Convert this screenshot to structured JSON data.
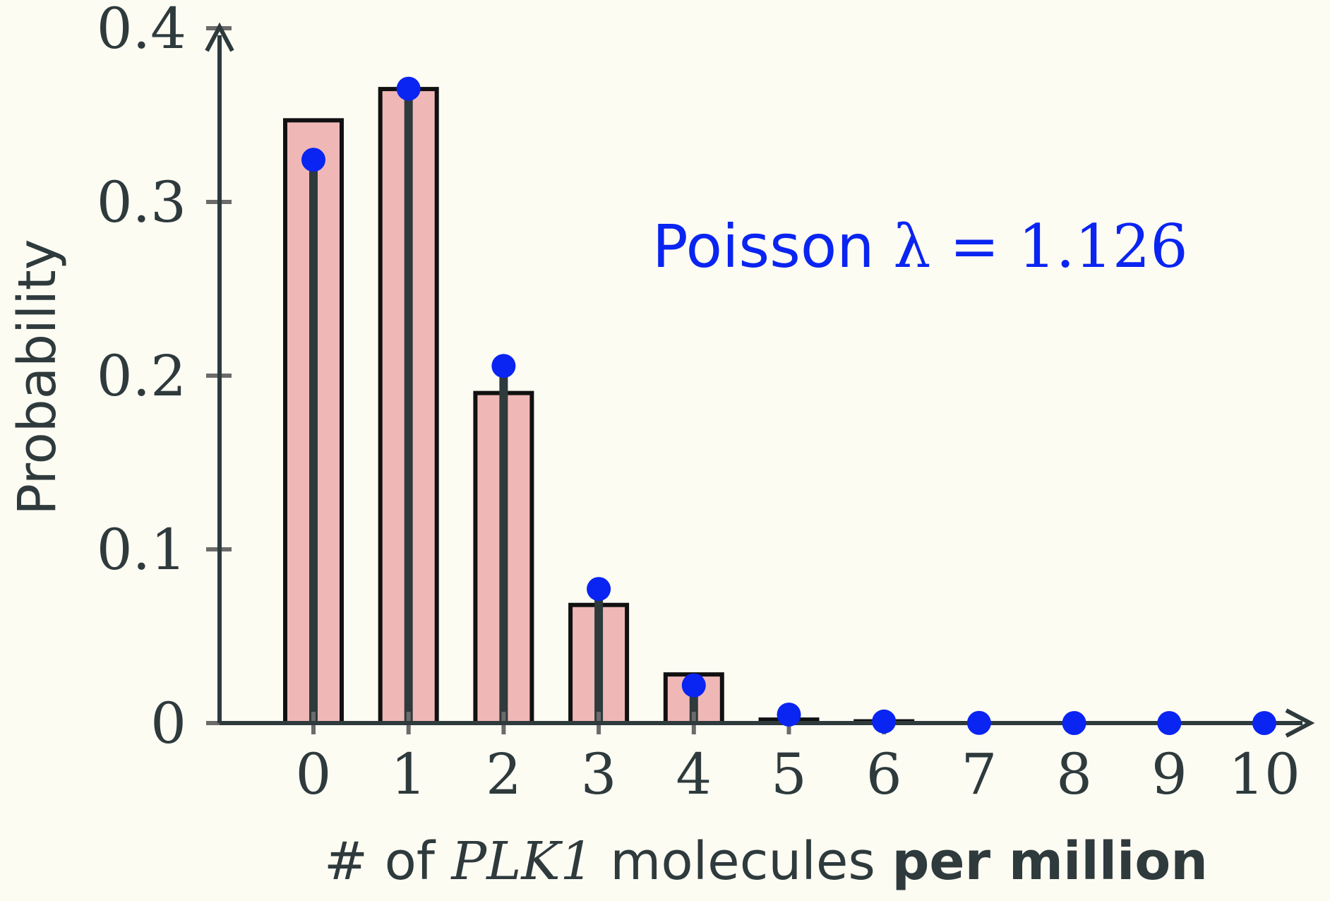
{
  "chart_data": {
    "type": "bar",
    "x": [
      0,
      1,
      2,
      3,
      4,
      5,
      6,
      7,
      8,
      9,
      10
    ],
    "x_tick_labels": [
      "0",
      "1",
      "2",
      "3",
      "4",
      "5",
      "6",
      "7",
      "8",
      "9",
      "10"
    ],
    "series": [
      {
        "kind": "bar",
        "values": [
          0.347,
          0.365,
          0.19,
          0.068,
          0.028,
          0.002,
          0.001,
          0,
          0,
          0,
          0
        ]
      },
      {
        "kind": "stem",
        "values": [
          0.3243,
          0.3652,
          0.2056,
          0.0772,
          0.0217,
          0.0049,
          0.0009,
          0.0001,
          0.0,
          0.0,
          0.0
        ]
      }
    ],
    "ylim": [
      0,
      0.4
    ],
    "y_ticks": [
      0,
      0.1,
      0.2,
      0.3,
      0.4
    ],
    "y_tick_labels": [
      "0",
      "0.1",
      "0.2",
      "0.3",
      "0.4"
    ],
    "ylabel": "Probability",
    "xlabel": {
      "prefix": "# of ",
      "gene": "PLK1",
      "middle": " molecules ",
      "suffix_bold": "per million"
    },
    "annotation": {
      "text": "Poisson ",
      "math": "λ = 1.126"
    },
    "grid": false,
    "colors": {
      "bar_fill": "#efb8b7",
      "bar_edge": "#111111",
      "stem": "#2e3a3c",
      "marker": "#0a24f2",
      "axis": "#2e3a3c",
      "background": "#fdfcf3"
    }
  }
}
